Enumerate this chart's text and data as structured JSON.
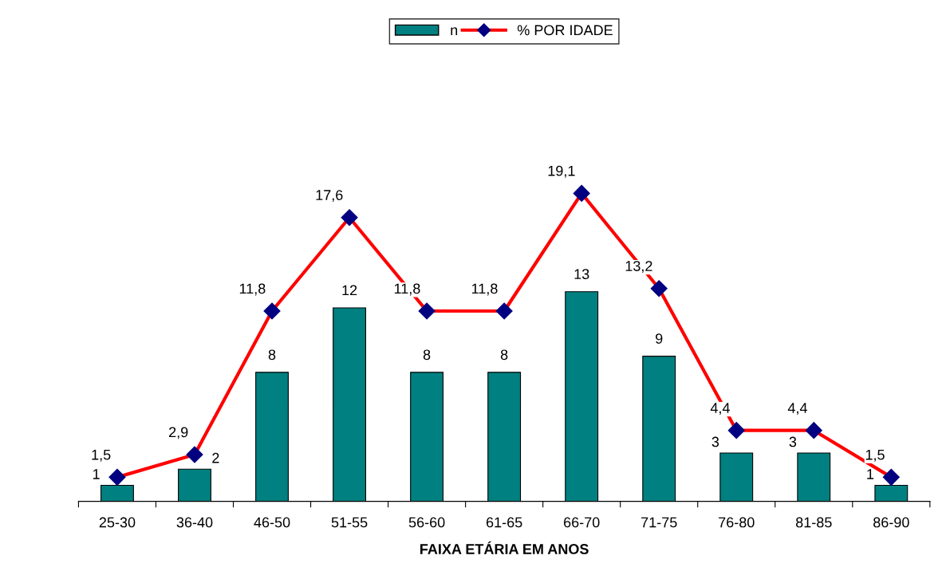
{
  "chart_data": {
    "type": "bar",
    "xlabel": "FAIXA ETÁRIA EM ANOS",
    "categories": [
      "25-30",
      "36-40",
      "46-50",
      "51-55",
      "56-60",
      "61-65",
      "66-70",
      "71-75",
      "76-80",
      "81-85",
      "86-90"
    ],
    "series": [
      {
        "name": "n",
        "color": "#008080",
        "values": [
          1,
          2,
          8,
          12,
          8,
          8,
          13,
          9,
          3,
          3,
          1
        ],
        "value_labels": [
          "1",
          "2",
          "8",
          "12",
          "8",
          "8",
          "13",
          "9",
          "3",
          "3",
          "1"
        ]
      },
      {
        "name": "% POR IDADE",
        "type": "line",
        "color": "#ff0000",
        "values": [
          1.5,
          2.9,
          11.8,
          17.6,
          11.8,
          11.8,
          19.1,
          13.2,
          4.4,
          4.4,
          1.5
        ],
        "value_labels": [
          "1,5",
          "2,9",
          "11,8",
          "17,6",
          "11,8",
          "11,8",
          "19,1",
          "13,2",
          "4,4",
          "4,4",
          "1,5"
        ]
      }
    ],
    "ylim": [
      0,
      30
    ],
    "tick_labels": "x",
    "marker": "diamond",
    "legend": "top"
  }
}
